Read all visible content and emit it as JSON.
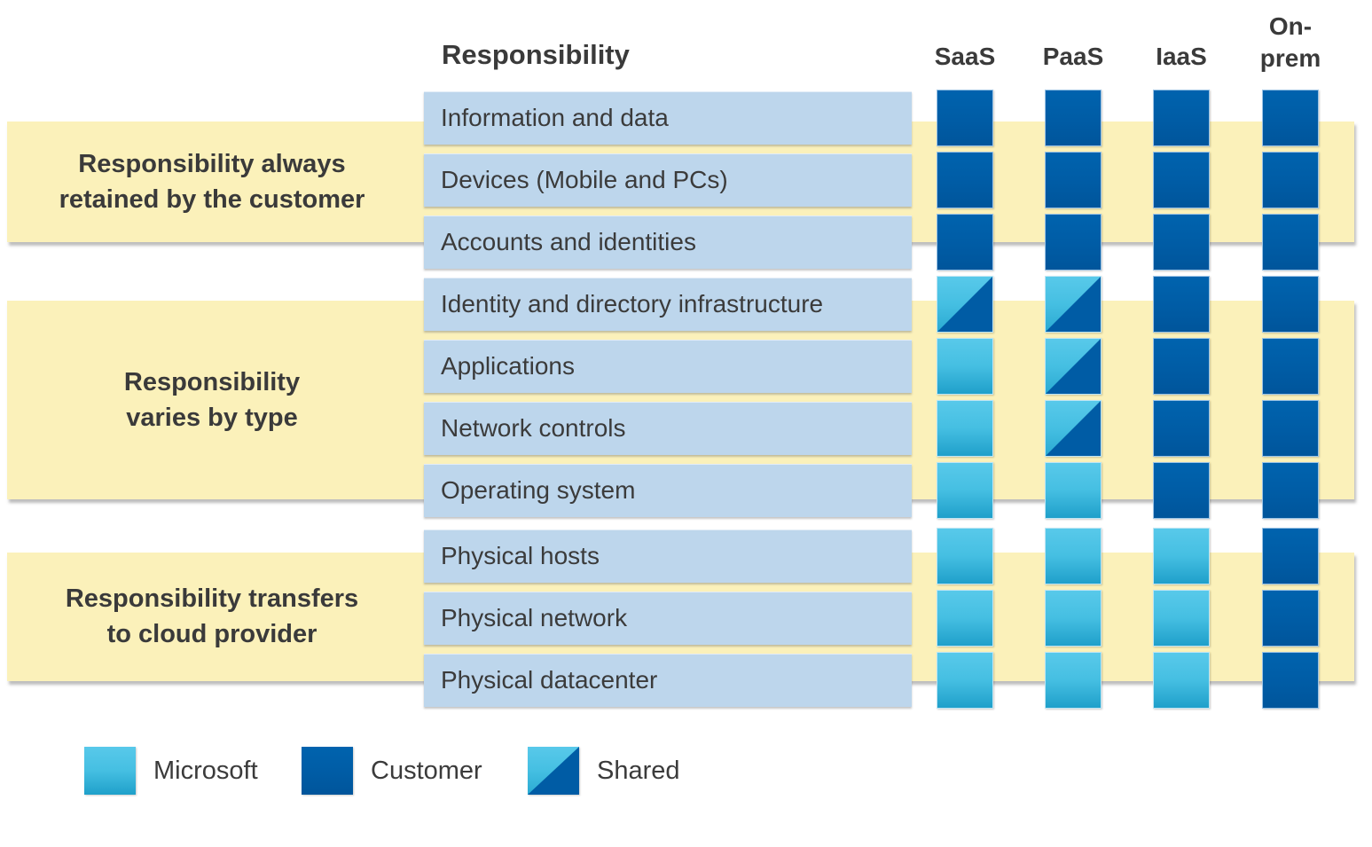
{
  "header": {
    "responsibility_label": "Responsibility",
    "saas": "SaaS",
    "paas": "PaaS",
    "iaas": "IaaS",
    "onprem_line1": "On-",
    "onprem_line2": "prem"
  },
  "groups": [
    {
      "lines": [
        "Responsibility always",
        "retained by the customer"
      ]
    },
    {
      "lines": [
        "Responsibility",
        "varies by type"
      ]
    },
    {
      "lines": [
        "Responsibility transfers",
        "to cloud provider"
      ]
    }
  ],
  "rows": [
    {
      "label": "Information and data",
      "cells": [
        "customer",
        "customer",
        "customer",
        "customer"
      ]
    },
    {
      "label": "Devices (Mobile and PCs)",
      "cells": [
        "customer",
        "customer",
        "customer",
        "customer"
      ]
    },
    {
      "label": "Accounts and identities",
      "cells": [
        "customer",
        "customer",
        "customer",
        "customer"
      ]
    },
    {
      "label": "Identity and directory infrastructure",
      "cells": [
        "shared",
        "shared",
        "customer",
        "customer"
      ]
    },
    {
      "label": "Applications",
      "cells": [
        "microsoft",
        "shared",
        "customer",
        "customer"
      ]
    },
    {
      "label": "Network controls",
      "cells": [
        "microsoft",
        "shared",
        "customer",
        "customer"
      ]
    },
    {
      "label": "Operating system",
      "cells": [
        "microsoft",
        "microsoft",
        "customer",
        "customer"
      ]
    },
    {
      "label": "Physical hosts",
      "cells": [
        "microsoft",
        "microsoft",
        "microsoft",
        "customer"
      ]
    },
    {
      "label": "Physical network",
      "cells": [
        "microsoft",
        "microsoft",
        "microsoft",
        "customer"
      ]
    },
    {
      "label": "Physical datacenter",
      "cells": [
        "microsoft",
        "microsoft",
        "microsoft",
        "customer"
      ]
    }
  ],
  "legend": [
    {
      "key": "microsoft",
      "label": "Microsoft"
    },
    {
      "key": "customer",
      "label": "Customer"
    },
    {
      "key": "shared",
      "label": "Shared"
    }
  ],
  "colors": {
    "customer_blue": "#005ca5",
    "microsoft_blue_top": "#58c9ea",
    "microsoft_blue_bottom": "#1fa0ca",
    "row_bar_blue": "#bdd6ec",
    "band_yellow": "#fbf1ba",
    "text": "#3b3b3b"
  }
}
